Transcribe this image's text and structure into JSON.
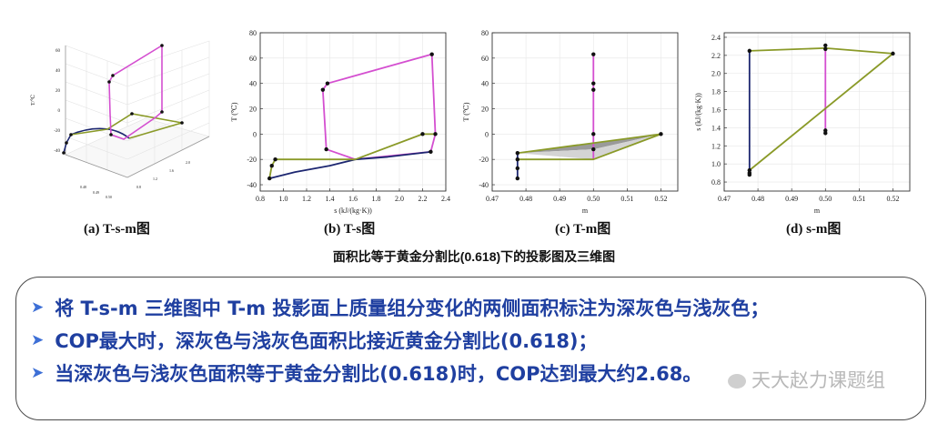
{
  "chart_data": [
    {
      "id": "a",
      "type": "line3d",
      "title": "(a) T-s-m图",
      "zlabel": "T/℃",
      "z_ticks": [
        "60",
        "40",
        "20",
        "0",
        "-20",
        "-40"
      ],
      "colors": {
        "high": "#d44fd0",
        "low": "#1c2670",
        "mix": "#8a9a28"
      }
    },
    {
      "id": "b",
      "type": "line",
      "title": "(b) T-s图",
      "xlabel": "s (kJ/(kg·K))",
      "ylabel": "T (℃)",
      "xlim": [
        0.8,
        2.4
      ],
      "ylim": [
        -45,
        80
      ],
      "xticks": [
        0.8,
        1.0,
        1.2,
        1.4,
        1.6,
        1.8,
        2.0,
        2.2,
        2.4
      ],
      "yticks": [
        -40,
        -20,
        0,
        20,
        40,
        60,
        80
      ],
      "series": [
        {
          "color": "#d44fd0",
          "x": [
            1.62,
            1.37,
            1.34,
            1.38,
            2.28,
            2.31,
            2.27,
            1.62
          ],
          "y": [
            -20,
            -12,
            35,
            40,
            63,
            0,
            -14,
            -20
          ]
        },
        {
          "color": "#1c2670",
          "x": [
            0.88,
            1.1,
            1.4,
            1.62,
            1.9,
            2.27
          ],
          "y": [
            -35,
            -30,
            -25,
            -20,
            -18,
            -14
          ]
        },
        {
          "color": "#8a9a28",
          "x": [
            0.88,
            0.9,
            0.93,
            1.62,
            2.2,
            2.31
          ],
          "y": [
            -35,
            -25,
            -20,
            -20,
            0,
            0
          ]
        }
      ],
      "points": [
        {
          "x": 0.88,
          "y": -35
        },
        {
          "x": 0.9,
          "y": -25
        },
        {
          "x": 0.93,
          "y": -20
        },
        {
          "x": 1.34,
          "y": 35
        },
        {
          "x": 1.38,
          "y": 40
        },
        {
          "x": 1.37,
          "y": -12
        },
        {
          "x": 2.28,
          "y": 63
        },
        {
          "x": 2.31,
          "y": 0
        },
        {
          "x": 2.2,
          "y": 0
        },
        {
          "x": 2.27,
          "y": -14
        }
      ]
    },
    {
      "id": "c",
      "type": "line",
      "title": "(c) T-m图",
      "xlabel": "m",
      "ylabel": "T (℃)",
      "xlim": [
        0.47,
        0.525
      ],
      "ylim": [
        -45,
        80
      ],
      "xticks": [
        0.47,
        0.48,
        0.49,
        0.5,
        0.51,
        0.52
      ],
      "yticks": [
        -40,
        -20,
        0,
        20,
        40,
        60,
        80
      ],
      "polygons": [
        {
          "fill": "#9a9a9a",
          "x": [
            0.4775,
            0.52,
            0.5
          ],
          "y": [
            -15,
            0,
            -12
          ]
        },
        {
          "fill": "#d4d4d4",
          "x": [
            0.4775,
            0.5,
            0.52,
            0.5
          ],
          "y": [
            -15,
            -12,
            0,
            -20
          ]
        }
      ],
      "series": [
        {
          "color": "#1c2670",
          "x": [
            0.4775,
            0.4775
          ],
          "y": [
            -35,
            -15
          ]
        },
        {
          "color": "#d44fd0",
          "x": [
            0.5,
            0.5
          ],
          "y": [
            -20,
            63
          ]
        },
        {
          "color": "#8a9a28",
          "x": [
            0.4775,
            0.52,
            0.5,
            0.4775
          ],
          "y": [
            -15,
            0,
            -20,
            -20
          ]
        }
      ],
      "points": [
        {
          "x": 0.4775,
          "y": -35
        },
        {
          "x": 0.4775,
          "y": -27
        },
        {
          "x": 0.4775,
          "y": -20
        },
        {
          "x": 0.4775,
          "y": -15
        },
        {
          "x": 0.5,
          "y": 63
        },
        {
          "x": 0.5,
          "y": 40
        },
        {
          "x": 0.5,
          "y": 35
        },
        {
          "x": 0.5,
          "y": 0
        },
        {
          "x": 0.5,
          "y": -12
        },
        {
          "x": 0.52,
          "y": 0
        }
      ]
    },
    {
      "id": "d",
      "type": "line",
      "title": "(d) s-m图",
      "xlabel": "m",
      "ylabel": "s (kJ/(kg·K))",
      "xlim": [
        0.47,
        0.525
      ],
      "ylim": [
        0.7,
        2.45
      ],
      "xticks": [
        0.47,
        0.48,
        0.49,
        0.5,
        0.51,
        0.52
      ],
      "yticks": [
        0.8,
        1.0,
        1.2,
        1.4,
        1.6,
        1.8,
        2.0,
        2.2,
        2.4
      ],
      "series": [
        {
          "color": "#1c2670",
          "x": [
            0.4775,
            0.4775
          ],
          "y": [
            0.88,
            2.25
          ]
        },
        {
          "color": "#d44fd0",
          "x": [
            0.5,
            0.5
          ],
          "y": [
            1.34,
            2.28
          ]
        },
        {
          "color": "#8a9a28",
          "x": [
            0.4775,
            0.5,
            0.52,
            0.4775
          ],
          "y": [
            2.25,
            2.28,
            2.22,
            0.93
          ]
        }
      ],
      "points": [
        {
          "x": 0.4775,
          "y": 2.25
        },
        {
          "x": 0.4775,
          "y": 0.93
        },
        {
          "x": 0.4775,
          "y": 0.9
        },
        {
          "x": 0.4775,
          "y": 0.88
        },
        {
          "x": 0.5,
          "y": 2.31
        },
        {
          "x": 0.5,
          "y": 2.27
        },
        {
          "x": 0.5,
          "y": 1.37
        },
        {
          "x": 0.5,
          "y": 1.34
        },
        {
          "x": 0.52,
          "y": 2.22
        }
      ]
    }
  ],
  "caption": "面积比等于黄金分割比(0.618)下的投影图及三维图",
  "bullets": [
    "将 T-s-m 三维图中 T-m 投影面上质量组分变化的两侧面积标注为深灰色与浅灰色；",
    "COP最大时，深灰色与浅灰色面积比接近黄金分割比(0.618)；",
    "当深灰色与浅灰色面积等于黄金分割比(0.618)时，COP达到最大约2.68。"
  ],
  "bullet_icon": "triangle-arrow-icon",
  "watermark": "天大赵力课题组",
  "watermark_icon": "wechat-icon"
}
